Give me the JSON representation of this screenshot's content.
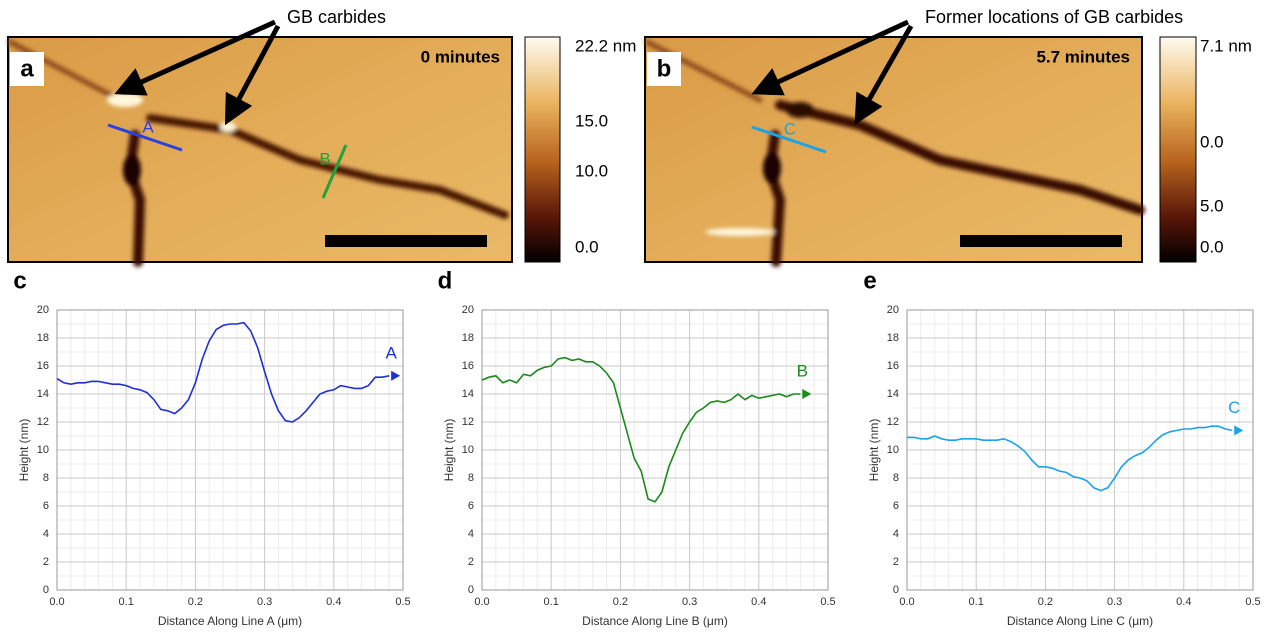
{
  "panels": [
    {
      "label": "a",
      "time_label": "0 minutes",
      "annotation": "GB carbides",
      "colorbar_labels": [
        "22.2 nm",
        "15.0",
        "10.0",
        "0.0"
      ],
      "lines": [
        "A",
        "B"
      ]
    },
    {
      "label": "b",
      "time_label": "5.7 minutes",
      "annotation": "Former locations of GB carbides",
      "colorbar_labels": [
        "7.1 nm",
        "0.0",
        "5.0",
        "0.0"
      ],
      "lines": [
        "C"
      ]
    }
  ],
  "chart_data": [
    {
      "type": "line",
      "label": "c",
      "x_label": "Distance Along Line A (μm)",
      "y_label": "Height (nm)",
      "x": [
        0,
        0.01,
        0.02,
        0.03,
        0.04,
        0.05,
        0.06,
        0.07,
        0.08,
        0.09,
        0.1,
        0.11,
        0.12,
        0.13,
        0.14,
        0.15,
        0.16,
        0.17,
        0.18,
        0.19,
        0.2,
        0.21,
        0.22,
        0.23,
        0.24,
        0.25,
        0.26,
        0.27,
        0.28,
        0.29,
        0.3,
        0.31,
        0.32,
        0.33,
        0.34,
        0.35,
        0.36,
        0.37,
        0.38,
        0.39,
        0.4,
        0.41,
        0.42,
        0.43,
        0.44,
        0.45,
        0.46,
        0.47,
        0.48
      ],
      "series": [
        {
          "name": "A",
          "color": "#1f2fd6",
          "values": [
            15.1,
            14.8,
            14.7,
            14.8,
            14.8,
            14.9,
            14.9,
            14.8,
            14.7,
            14.7,
            14.6,
            14.4,
            14.3,
            14.1,
            13.6,
            12.9,
            12.8,
            12.6,
            13.0,
            13.6,
            14.8,
            16.5,
            17.8,
            18.6,
            18.9,
            19.0,
            19.0,
            19.1,
            18.5,
            17.3,
            15.6,
            14.0,
            12.8,
            12.1,
            12.0,
            12.3,
            12.8,
            13.4,
            14.0,
            14.2,
            14.3,
            14.6,
            14.5,
            14.4,
            14.4,
            14.6,
            15.2,
            15.2,
            15.3
          ]
        }
      ],
      "xlim": [
        0,
        0.5
      ],
      "xticks": [
        {
          "value": 0,
          "label": "0.0"
        },
        0.1,
        0.2,
        0.3,
        0.4,
        0.5
      ],
      "ylim": [
        0,
        20
      ],
      "yticks": [
        0,
        2,
        4,
        6,
        8,
        10,
        12,
        14,
        16,
        18,
        20
      ],
      "grid": true,
      "minor_grid": true
    },
    {
      "type": "line",
      "label": "d",
      "x_label": "Distance Along Line B (μm)",
      "y_label": "Height (nm)",
      "x": [
        0,
        0.01,
        0.02,
        0.03,
        0.04,
        0.05,
        0.06,
        0.07,
        0.08,
        0.09,
        0.1,
        0.11,
        0.12,
        0.13,
        0.14,
        0.15,
        0.16,
        0.17,
        0.18,
        0.19,
        0.2,
        0.21,
        0.22,
        0.23,
        0.24,
        0.25,
        0.26,
        0.27,
        0.28,
        0.29,
        0.3,
        0.31,
        0.32,
        0.33,
        0.34,
        0.35,
        0.36,
        0.37,
        0.38,
        0.39,
        0.4,
        0.41,
        0.42,
        0.43,
        0.44,
        0.45,
        0.46
      ],
      "series": [
        {
          "name": "B",
          "color": "#1a8a1a",
          "values": [
            15.0,
            15.2,
            15.3,
            14.8,
            15.0,
            14.8,
            15.4,
            15.3,
            15.7,
            15.9,
            16.0,
            16.5,
            16.6,
            16.4,
            16.5,
            16.3,
            16.3,
            16.0,
            15.5,
            14.8,
            13.0,
            11.2,
            9.4,
            8.5,
            6.5,
            6.3,
            7.0,
            8.8,
            10.0,
            11.2,
            12.0,
            12.7,
            13.0,
            13.4,
            13.5,
            13.4,
            13.6,
            14.0,
            13.6,
            13.9,
            13.7,
            13.8,
            13.9,
            14.0,
            13.8,
            14.0,
            14.0
          ]
        }
      ],
      "xlim": [
        0,
        0.5
      ],
      "xticks": [
        {
          "value": 0,
          "label": "0.0"
        },
        0.1,
        0.2,
        0.3,
        0.4,
        0.5
      ],
      "ylim": [
        0,
        20
      ],
      "yticks": [
        0,
        2,
        4,
        6,
        8,
        10,
        12,
        14,
        16,
        18,
        20
      ],
      "grid": true,
      "minor_grid": true
    },
    {
      "type": "line",
      "label": "e",
      "x_label": "Distance Along Line C (μm)",
      "y_label": "Height (nm)",
      "x": [
        0,
        0.01,
        0.02,
        0.03,
        0.04,
        0.05,
        0.06,
        0.07,
        0.08,
        0.09,
        0.1,
        0.11,
        0.12,
        0.13,
        0.14,
        0.15,
        0.16,
        0.17,
        0.18,
        0.19,
        0.2,
        0.21,
        0.22,
        0.23,
        0.24,
        0.25,
        0.26,
        0.27,
        0.28,
        0.29,
        0.3,
        0.31,
        0.32,
        0.33,
        0.34,
        0.35,
        0.36,
        0.37,
        0.38,
        0.39,
        0.4,
        0.41,
        0.42,
        0.43,
        0.44,
        0.45,
        0.46,
        0.47
      ],
      "series": [
        {
          "name": "C",
          "color": "#1aa3e8",
          "values": [
            10.9,
            10.9,
            10.8,
            10.8,
            11.0,
            10.8,
            10.7,
            10.7,
            10.8,
            10.8,
            10.8,
            10.7,
            10.7,
            10.7,
            10.8,
            10.6,
            10.3,
            9.9,
            9.3,
            8.8,
            8.8,
            8.7,
            8.5,
            8.4,
            8.1,
            8.0,
            7.8,
            7.3,
            7.1,
            7.3,
            8.0,
            8.8,
            9.3,
            9.6,
            9.8,
            10.2,
            10.7,
            11.1,
            11.3,
            11.4,
            11.5,
            11.5,
            11.6,
            11.6,
            11.7,
            11.7,
            11.5,
            11.4
          ]
        }
      ],
      "xlim": [
        0,
        0.5
      ],
      "xticks": [
        {
          "value": 0,
          "label": "0.0"
        },
        0.1,
        0.2,
        0.3,
        0.4,
        0.5
      ],
      "ylim": [
        0,
        20
      ],
      "yticks": [
        0,
        2,
        4,
        6,
        8,
        10,
        12,
        14,
        16,
        18,
        20
      ],
      "grid": true,
      "minor_grid": true
    }
  ]
}
